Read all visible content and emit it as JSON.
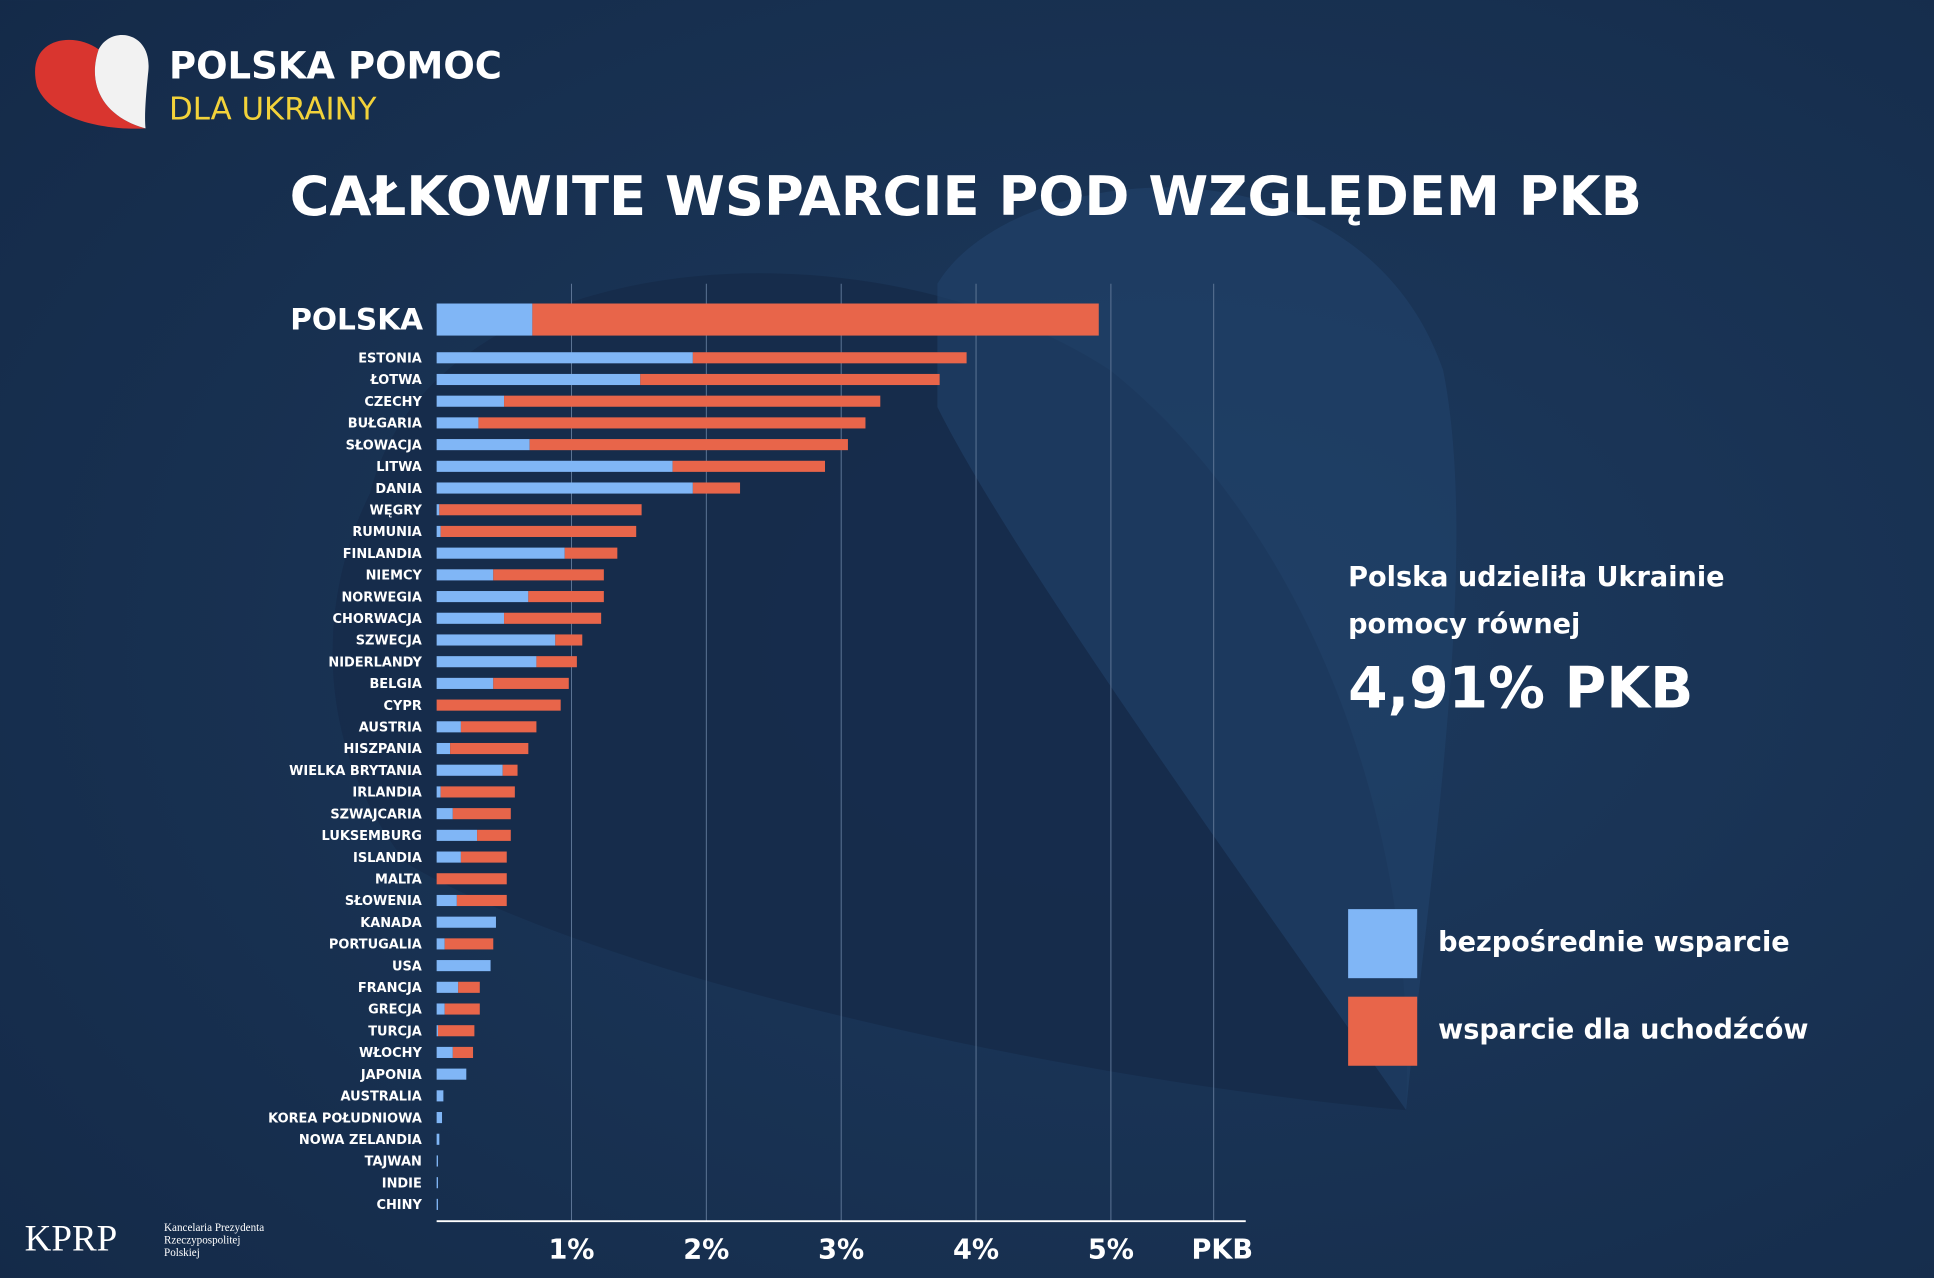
{
  "chart_data": {
    "type": "stacked_barh",
    "title": "CAŁKOWITE WSPARCIE  POD WZGLĘDEM PKB",
    "logo": [
      "POLSKA POMOC",
      "DLA UKRAINY"
    ],
    "annotation": [
      "Polska udzieliła Ukrainie",
      "pomocy równej",
      "4,91% PKB"
    ],
    "footer_logo": "KPRP",
    "footer_text": [
      "Kancelaria Prezydenta",
      "Rzeczypospolitej",
      "Polskiej"
    ],
    "xlabel": "PKB",
    "categories": [
      "POLSKA",
      "ESTONIA",
      "ŁOTWA",
      "CZECHY",
      "BUŁGARIA",
      "SŁOWACJA",
      "LITWA",
      "DANIA",
      "WĘGRY",
      "RUMUNIA",
      "FINLANDIA",
      "NIEMCY",
      "NORWEGIA",
      "CHORWACJA",
      "SZWECJA",
      "NIDERLANDY",
      "BELGIA",
      "CYPR",
      "AUSTRIA",
      "HISZPANIA",
      "WIELKA BRYTANIA",
      "IRLANDIA",
      "SZWAJCARIA",
      "LUKSEMBURG",
      "ISLANDIA",
      "MALTA",
      "SŁOWENIA",
      "KANADA",
      "PORTUGALIA",
      "USA",
      "FRANCJA",
      "GRECJA",
      "TURCJA",
      "WŁOCHY",
      "JAPONIA",
      "AUSTRALIA",
      "KOREA POŁUDNIOWA",
      "NOWA ZELANDIA",
      "TAJWAN",
      "INDIE",
      "CHINY"
    ],
    "series": [
      {
        "name": "bezpośrednie wsparcie",
        "color": "#80b6f6",
        "values": [
          0.71,
          1.9,
          1.51,
          0.5,
          0.31,
          0.69,
          1.75,
          1.9,
          0.02,
          0.03,
          0.95,
          0.42,
          0.68,
          0.5,
          0.88,
          0.74,
          0.42,
          0,
          0.18,
          0.1,
          0.49,
          0.03,
          0.12,
          0.3,
          0.18,
          0,
          0.15,
          0.44,
          0.06,
          0.4,
          0.16,
          0.06,
          0.01,
          0.12,
          0.22,
          0.05,
          0.04,
          0.02,
          0.01,
          0.01,
          0.01
        ]
      },
      {
        "name": "wsparcie dla uchodźców",
        "color": "#e8654a",
        "values": [
          4.2,
          2.03,
          2.22,
          2.79,
          2.87,
          2.36,
          1.13,
          0.35,
          1.5,
          1.45,
          0.39,
          0.82,
          0.56,
          0.72,
          0.2,
          0.3,
          0.56,
          0.92,
          0.56,
          0.58,
          0.11,
          0.55,
          0.43,
          0.25,
          0.34,
          0.52,
          0.37,
          0,
          0.36,
          0,
          0.16,
          0.26,
          0.27,
          0.15,
          0,
          0,
          0,
          0,
          0,
          0,
          0
        ]
      }
    ],
    "xlim": [
      0,
      6
    ],
    "xticks": [
      {
        "value": 1,
        "label": "1%"
      },
      {
        "value": 2,
        "label": "2%"
      },
      {
        "value": 3,
        "label": "3%"
      },
      {
        "value": 4,
        "label": "4%"
      },
      {
        "value": 5,
        "label": "5%"
      }
    ],
    "grid": true
  }
}
